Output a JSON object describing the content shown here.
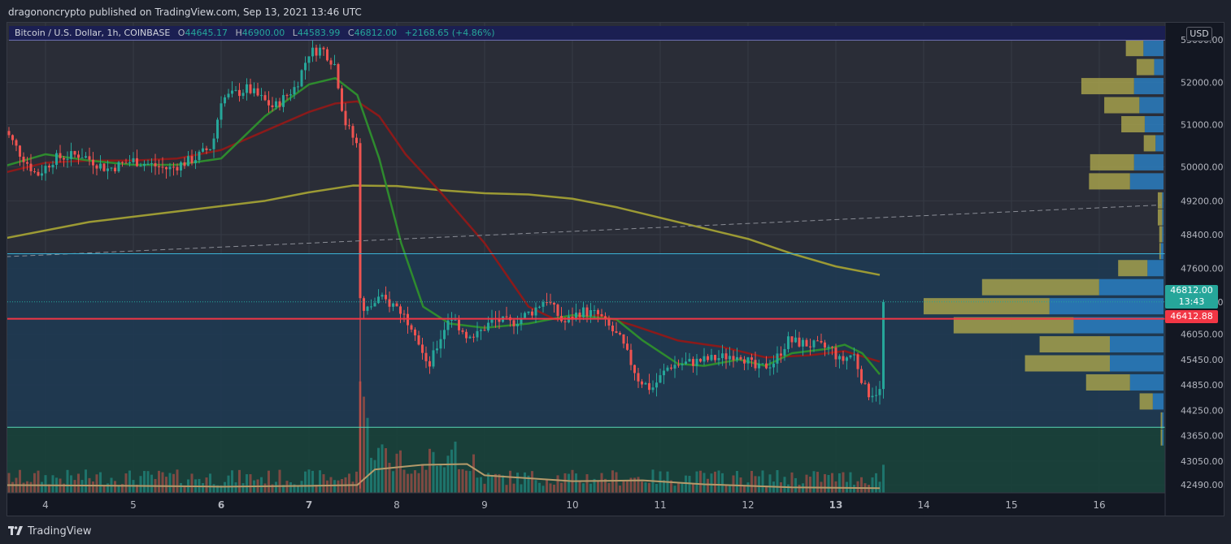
{
  "header": {
    "publisher": "dragononcrypto published on TradingView.com, Sep 13, 2021 13:46 UTC"
  },
  "legend": {
    "symbol": "Bitcoin / U.S. Dollar, 1h, COINBASE",
    "open_label": "O",
    "open": "44645.17",
    "high_label": "H",
    "high": "46900.00",
    "low_label": "L",
    "low": "44583.99",
    "close_label": "C",
    "close": "46812.00",
    "change": "+2168.65 (+4.86%)"
  },
  "currency": "USD",
  "price_tag": {
    "price": "46812.00",
    "countdown": "13:43"
  },
  "ref_tag": {
    "price": "46412.88"
  },
  "footer": {
    "brand": "TradingView"
  },
  "colors": {
    "up": "#26a69a",
    "down": "#ef5350",
    "ema_fast": "#2e8b2e",
    "ema_mid": "#8b1a1a",
    "ma_slow": "#9c9a34",
    "zone_blue": "#1e3a52",
    "zone_green": "#17413a",
    "ref_line": "#f23645",
    "vp_yellow": "#a4a04b",
    "vp_blue": "#2a7ec0"
  },
  "chart_data": {
    "type": "candlestick",
    "timeframe": "1h",
    "x_ticks": [
      "4",
      "5",
      "6",
      "7",
      "8",
      "9",
      "10",
      "11",
      "12",
      "13",
      "14",
      "15",
      "16"
    ],
    "x_ticks_bold": [
      "6",
      "7",
      "13"
    ],
    "y_ticks": [
      "53000.00",
      "52000.00",
      "51000.00",
      "50000.00",
      "49200.00",
      "48400.00",
      "47600.00",
      "46812.00",
      "46050.00",
      "45450.00",
      "44850.00",
      "44250.00",
      "43650.00",
      "43050.00",
      "42490.00"
    ],
    "ylim": [
      42300,
      53350
    ],
    "zones": [
      {
        "name": "upper-zone",
        "from": 43850,
        "to": 47950,
        "color": "#1e3a52"
      },
      {
        "name": "lower-zone",
        "from": 42300,
        "to": 43850,
        "color": "#17413a"
      }
    ],
    "horizontal_lines": [
      {
        "name": "ref-line",
        "price": 46412.88,
        "color": "#f23645"
      },
      {
        "name": "last-price-line",
        "price": 46812.0,
        "color": "#26a69a",
        "style": "dotted"
      },
      {
        "name": "zone-top-line",
        "price": 47950,
        "color": "#3bb2d6"
      },
      {
        "name": "zone-bottom-line",
        "price": 43850,
        "color": "#58d9b6"
      }
    ],
    "trendline": {
      "from_date": "Sep 4",
      "from_price": 47880,
      "to_date": "Sep 16",
      "to_price": 49100,
      "style": "dashed"
    },
    "ohlc_path": [
      {
        "day": 3.5,
        "price": 51000
      },
      {
        "day": 3.7,
        "price": 50350
      },
      {
        "day": 3.9,
        "price": 49800
      },
      {
        "day": 4.1,
        "price": 50200
      },
      {
        "day": 4.4,
        "price": 50300
      },
      {
        "day": 4.7,
        "price": 49950
      },
      {
        "day": 5.0,
        "price": 50150
      },
      {
        "day": 5.4,
        "price": 49950
      },
      {
        "day": 5.7,
        "price": 50200
      },
      {
        "day": 5.9,
        "price": 50500
      },
      {
        "day": 6.0,
        "price": 51600
      },
      {
        "day": 6.3,
        "price": 51850
      },
      {
        "day": 6.6,
        "price": 51400
      },
      {
        "day": 6.85,
        "price": 51900
      },
      {
        "day": 7.0,
        "price": 52700
      },
      {
        "day": 7.15,
        "price": 52800
      },
      {
        "day": 7.3,
        "price": 52400
      },
      {
        "day": 7.4,
        "price": 51100
      },
      {
        "day": 7.55,
        "price": 50500
      },
      {
        "day": 7.6,
        "price": 46500
      },
      {
        "day": 7.8,
        "price": 46900
      },
      {
        "day": 8.0,
        "price": 46700
      },
      {
        "day": 8.2,
        "price": 46200
      },
      {
        "day": 8.35,
        "price": 45200
      },
      {
        "day": 8.6,
        "price": 46500
      },
      {
        "day": 8.85,
        "price": 45900
      },
      {
        "day": 9.1,
        "price": 46400
      },
      {
        "day": 9.3,
        "price": 46300
      },
      {
        "day": 9.55,
        "price": 46600
      },
      {
        "day": 9.7,
        "price": 46900
      },
      {
        "day": 9.9,
        "price": 46300
      },
      {
        "day": 10.1,
        "price": 46600
      },
      {
        "day": 10.3,
        "price": 46500
      },
      {
        "day": 10.55,
        "price": 45900
      },
      {
        "day": 10.75,
        "price": 45000
      },
      {
        "day": 10.9,
        "price": 44750
      },
      {
        "day": 11.1,
        "price": 45300
      },
      {
        "day": 11.4,
        "price": 45400
      },
      {
        "day": 11.7,
        "price": 45500
      },
      {
        "day": 11.9,
        "price": 45600
      },
      {
        "day": 12.1,
        "price": 45200
      },
      {
        "day": 12.3,
        "price": 45400
      },
      {
        "day": 12.45,
        "price": 45900
      },
      {
        "day": 12.7,
        "price": 45800
      },
      {
        "day": 12.95,
        "price": 45700
      },
      {
        "day": 13.05,
        "price": 45400
      },
      {
        "day": 13.2,
        "price": 45600
      },
      {
        "day": 13.35,
        "price": 44650
      },
      {
        "day": 13.5,
        "price": 44700
      },
      {
        "day": 13.55,
        "price": 46812
      }
    ],
    "ema_fast": [
      {
        "day": 3.5,
        "price": 50000
      },
      {
        "day": 4.0,
        "price": 50300
      },
      {
        "day": 4.5,
        "price": 50150
      },
      {
        "day": 5.0,
        "price": 50050
      },
      {
        "day": 5.5,
        "price": 50050
      },
      {
        "day": 6.0,
        "price": 50200
      },
      {
        "day": 6.5,
        "price": 51200
      },
      {
        "day": 7.0,
        "price": 51950
      },
      {
        "day": 7.3,
        "price": 52100
      },
      {
        "day": 7.55,
        "price": 51700
      },
      {
        "day": 7.8,
        "price": 50200
      },
      {
        "day": 8.05,
        "price": 48200
      },
      {
        "day": 8.3,
        "price": 46700
      },
      {
        "day": 8.6,
        "price": 46300
      },
      {
        "day": 9.0,
        "price": 46200
      },
      {
        "day": 9.5,
        "price": 46300
      },
      {
        "day": 10.0,
        "price": 46500
      },
      {
        "day": 10.5,
        "price": 46400
      },
      {
        "day": 10.8,
        "price": 45900
      },
      {
        "day": 11.2,
        "price": 45350
      },
      {
        "day": 11.5,
        "price": 45300
      },
      {
        "day": 11.9,
        "price": 45450
      },
      {
        "day": 12.2,
        "price": 45300
      },
      {
        "day": 12.5,
        "price": 45600
      },
      {
        "day": 12.9,
        "price": 45700
      },
      {
        "day": 13.1,
        "price": 45800
      },
      {
        "day": 13.3,
        "price": 45600
      },
      {
        "day": 13.5,
        "price": 45100
      }
    ],
    "ema_mid": [
      {
        "day": 3.5,
        "price": 49850
      },
      {
        "day": 4.0,
        "price": 50100
      },
      {
        "day": 4.5,
        "price": 50150
      },
      {
        "day": 5.0,
        "price": 50150
      },
      {
        "day": 5.5,
        "price": 50200
      },
      {
        "day": 6.0,
        "price": 50400
      },
      {
        "day": 6.5,
        "price": 50850
      },
      {
        "day": 7.0,
        "price": 51300
      },
      {
        "day": 7.3,
        "price": 51500
      },
      {
        "day": 7.55,
        "price": 51550
      },
      {
        "day": 7.8,
        "price": 51200
      },
      {
        "day": 8.1,
        "price": 50300
      },
      {
        "day": 8.5,
        "price": 49400
      },
      {
        "day": 9.0,
        "price": 48200
      },
      {
        "day": 9.5,
        "price": 46700
      },
      {
        "day": 9.8,
        "price": 46400
      },
      {
        "day": 10.3,
        "price": 46500
      },
      {
        "day": 10.7,
        "price": 46250
      },
      {
        "day": 11.2,
        "price": 45900
      },
      {
        "day": 11.7,
        "price": 45750
      },
      {
        "day": 12.2,
        "price": 45500
      },
      {
        "day": 12.7,
        "price": 45550
      },
      {
        "day": 13.1,
        "price": 45650
      },
      {
        "day": 13.5,
        "price": 45400
      }
    ],
    "ma_slow": [
      {
        "day": 3.5,
        "price": 48300
      },
      {
        "day": 4.5,
        "price": 48700
      },
      {
        "day": 5.5,
        "price": 48950
      },
      {
        "day": 6.5,
        "price": 49200
      },
      {
        "day": 7.0,
        "price": 49400
      },
      {
        "day": 7.5,
        "price": 49560
      },
      {
        "day": 8.0,
        "price": 49550
      },
      {
        "day": 8.5,
        "price": 49450
      },
      {
        "day": 9.0,
        "price": 49380
      },
      {
        "day": 9.5,
        "price": 49350
      },
      {
        "day": 10.0,
        "price": 49250
      },
      {
        "day": 10.5,
        "price": 49050
      },
      {
        "day": 11.0,
        "price": 48800
      },
      {
        "day": 11.5,
        "price": 48550
      },
      {
        "day": 12.0,
        "price": 48300
      },
      {
        "day": 12.5,
        "price": 47950
      },
      {
        "day": 13.0,
        "price": 47650
      },
      {
        "day": 13.5,
        "price": 47450
      }
    ],
    "volume_profile": [
      {
        "price": 52800,
        "up": 0.12,
        "down": 0.15
      },
      {
        "price": 52350,
        "up": 0.12,
        "down": 0.07
      },
      {
        "price": 51900,
        "up": 0.36,
        "down": 0.22
      },
      {
        "price": 51450,
        "up": 0.24,
        "down": 0.18
      },
      {
        "price": 51000,
        "up": 0.16,
        "down": 0.14
      },
      {
        "price": 50550,
        "up": 0.08,
        "down": 0.06
      },
      {
        "price": 50100,
        "up": 0.3,
        "down": 0.22
      },
      {
        "price": 49650,
        "up": 0.28,
        "down": 0.25
      },
      {
        "price": 49200,
        "up": 0.03,
        "down": 0.01
      },
      {
        "price": 48800,
        "up": 0.03,
        "down": 0.01
      },
      {
        "price": 48400,
        "up": 0.02,
        "down": 0.01
      },
      {
        "price": 48000,
        "up": 0.01,
        "down": 0.02
      },
      {
        "price": 47600,
        "up": 0.2,
        "down": 0.12
      },
      {
        "price": 47150,
        "up": 0.8,
        "down": 0.48
      },
      {
        "price": 46700,
        "up": 0.86,
        "down": 0.85
      },
      {
        "price": 46250,
        "up": 0.82,
        "down": 0.67
      },
      {
        "price": 45800,
        "up": 0.48,
        "down": 0.4
      },
      {
        "price": 45350,
        "up": 0.58,
        "down": 0.4
      },
      {
        "price": 44900,
        "up": 0.3,
        "down": 0.25
      },
      {
        "price": 44450,
        "up": 0.09,
        "down": 0.08
      },
      {
        "price": 44000,
        "up": 0.01,
        "down": 0.01
      },
      {
        "price": 43600,
        "up": 0.01,
        "down": 0.01
      }
    ],
    "volume_avg": [
      {
        "day": 3.5,
        "price": 0.2
      },
      {
        "day": 5.0,
        "price": 0.18
      },
      {
        "day": 6.0,
        "price": 0.16
      },
      {
        "day": 7.0,
        "price": 0.18
      },
      {
        "day": 7.55,
        "price": 0.2
      },
      {
        "day": 7.75,
        "price": 0.6
      },
      {
        "day": 8.3,
        "price": 0.72
      },
      {
        "day": 8.8,
        "price": 0.74
      },
      {
        "day": 9.0,
        "price": 0.45
      },
      {
        "day": 10.0,
        "price": 0.3
      },
      {
        "day": 10.8,
        "price": 0.32
      },
      {
        "day": 11.5,
        "price": 0.22
      },
      {
        "day": 12.5,
        "price": 0.14
      },
      {
        "day": 13.5,
        "price": 0.12
      }
    ]
  }
}
